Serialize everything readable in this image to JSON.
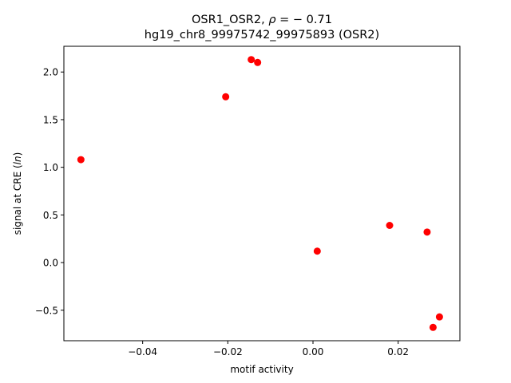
{
  "chart_data": {
    "type": "scatter",
    "title_line1": "OSR1_OSR2, ρ = − 0.71",
    "title_line2": "hg19_chr8_99975742_99975893 (OSR2)",
    "xlabel": "motif activity",
    "ylabel": "signal at CRE (ln)",
    "xlim": [
      -0.0585,
      0.0345
    ],
    "ylim": [
      -0.82,
      2.27
    ],
    "xticks": [
      -0.04,
      -0.02,
      0.0,
      0.02
    ],
    "xtick_labels": [
      "−0.04",
      "−0.02",
      "0.00",
      "0.02"
    ],
    "yticks": [
      -0.5,
      0.0,
      0.5,
      1.0,
      1.5,
      2.0
    ],
    "ytick_labels": [
      "−0.5",
      "0.0",
      "0.5",
      "1.0",
      "1.5",
      "2.0"
    ],
    "grid": false,
    "marker_color": "#ff0000",
    "points": [
      {
        "x": -0.0545,
        "y": 1.08
      },
      {
        "x": -0.0205,
        "y": 1.74
      },
      {
        "x": -0.0145,
        "y": 2.13
      },
      {
        "x": -0.013,
        "y": 2.1
      },
      {
        "x": 0.001,
        "y": 0.12
      },
      {
        "x": 0.018,
        "y": 0.39
      },
      {
        "x": 0.0268,
        "y": 0.32
      },
      {
        "x": 0.0297,
        "y": -0.57
      },
      {
        "x": 0.0282,
        "y": -0.68
      }
    ]
  }
}
